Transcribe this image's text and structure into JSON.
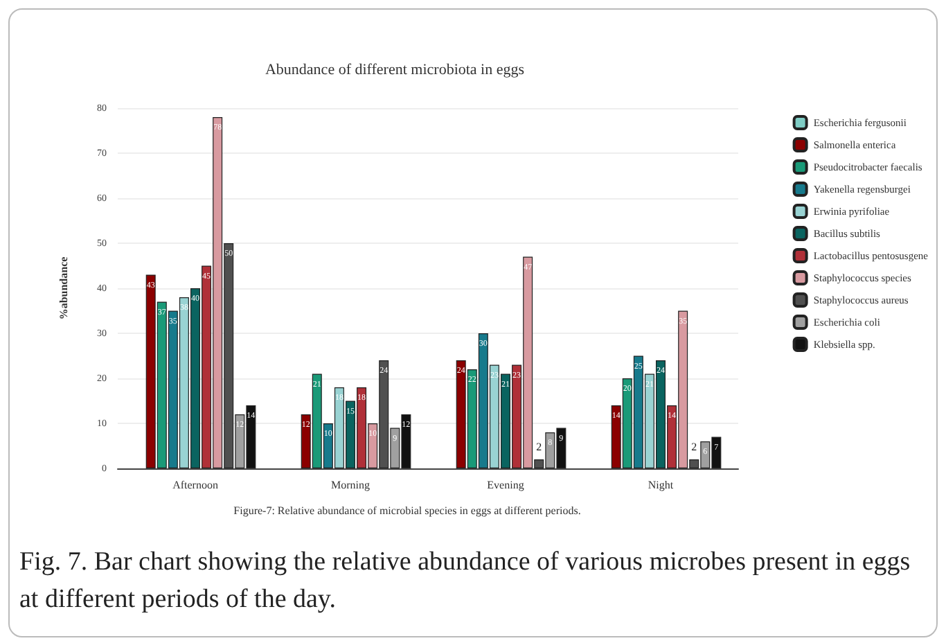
{
  "chart_data": {
    "type": "bar",
    "title": "Abundance of different microbiota in eggs",
    "ylabel": "%abundance",
    "categories": [
      "Afternoon",
      "Morning",
      "Evening",
      "Night"
    ],
    "series": [
      {
        "name": "Escherichia fergusonii",
        "color": "#7fcdc5",
        "values": [
          null,
          null,
          null,
          null
        ]
      },
      {
        "name": "Salmonella enterica",
        "color": "#8b0000",
        "values": [
          43,
          12,
          24,
          14
        ]
      },
      {
        "name": "Pseudocitrobacter faecalis",
        "color": "#1a9a78",
        "values": [
          37,
          21,
          22,
          20
        ]
      },
      {
        "name": "Yakenella regensburgei",
        "color": "#177a8c",
        "values": [
          35,
          10,
          30,
          25
        ]
      },
      {
        "name": "Erwinia pyrifoliae",
        "color": "#99d3d3",
        "values": [
          38,
          18,
          23,
          21
        ]
      },
      {
        "name": "Bacillus subtilis",
        "color": "#0a6460",
        "values": [
          40,
          15,
          21,
          24
        ]
      },
      {
        "name": "Lactobacillus pentosusgene",
        "color": "#b03038",
        "values": [
          45,
          18,
          23,
          14
        ]
      },
      {
        "name": "Staphylococcus species",
        "color": "#d89aa0",
        "values": [
          78,
          10,
          47,
          35
        ]
      },
      {
        "name": "Staphylococcus aureus",
        "color": "#505050",
        "values": [
          50,
          24,
          2,
          2
        ]
      },
      {
        "name": "Escherichia coli",
        "color": "#a0a0a0",
        "values": [
          12,
          9,
          8,
          6
        ]
      },
      {
        "name": "Klebsiella spp.",
        "color": "#111111",
        "values": [
          14,
          12,
          9,
          7
        ]
      }
    ],
    "ylim": [
      0,
      80
    ],
    "yticks": [
      0,
      10,
      20,
      30,
      40,
      50,
      60,
      70,
      80
    ],
    "grid": "y",
    "legend": "right",
    "data_labels": true,
    "annotations": [
      "Figure-7: Relative abundance of microbial species  in eggs at different periods.",
      "Fig. 7. Bar chart showing the relative abundance of various microbes present in eggs at different periods of the day."
    ]
  }
}
